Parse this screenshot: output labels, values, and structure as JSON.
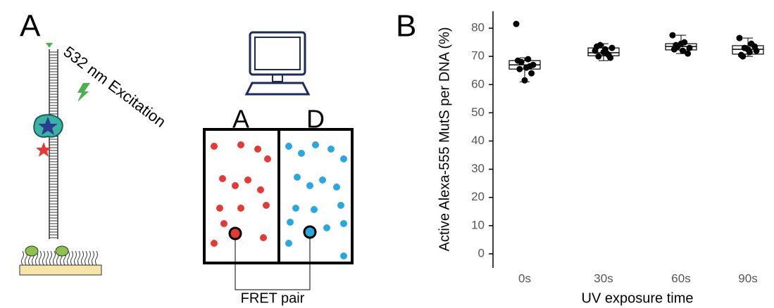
{
  "panel_a": {
    "label": "A",
    "excitation": "532 nm Excitation",
    "acceptor": "A",
    "donor": "D",
    "fret": "FRET pair"
  },
  "chart_data": {
    "type": "box",
    "panel_label": "B",
    "x_label": "UV exposure time",
    "y_label": "Active Alexa-555 MutS per DNA (%)",
    "categories": [
      "0s",
      "30s",
      "60s",
      "90s"
    ],
    "ylim": [
      -5,
      86
    ],
    "yticks": [
      0,
      10,
      20,
      30,
      40,
      50,
      60,
      70,
      80
    ],
    "boxes": [
      {
        "whislo": 61,
        "q1": 65.5,
        "med": 67,
        "q3": 68.5,
        "whishi": 69.5
      },
      {
        "whislo": 68.5,
        "q1": 70.2,
        "med": 71.3,
        "q3": 73,
        "whishi": 74.5
      },
      {
        "whislo": 71,
        "q1": 72.3,
        "med": 73.5,
        "q3": 74.5,
        "whishi": 77.5
      },
      {
        "whislo": 70,
        "q1": 70.8,
        "med": 72.5,
        "q3": 73.8,
        "whishi": 76.5
      }
    ],
    "points": [
      [
        81.5,
        69,
        68,
        67,
        66,
        65.5,
        64,
        61.5,
        68.5,
        66.5
      ],
      [
        72,
        71,
        74,
        73,
        72.5,
        70,
        69.5,
        71.5,
        73.5,
        70.5
      ],
      [
        77.5,
        75,
        73.5,
        73,
        72,
        74,
        71,
        74.5,
        72.5
      ],
      [
        76.5,
        74.5,
        73,
        72,
        71.5,
        70,
        73.5,
        72.5,
        70.5
      ]
    ],
    "color": "#000000"
  }
}
